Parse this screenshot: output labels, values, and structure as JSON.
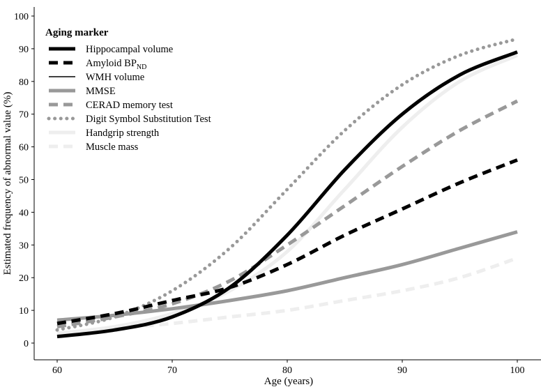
{
  "chart_data": {
    "type": "line",
    "xlabel": "Age (years)",
    "ylabel": "Estimated frequency of abnormal value (%)",
    "xlim": [
      60,
      100
    ],
    "ylim": [
      0,
      100
    ],
    "xticks": [
      60,
      70,
      80,
      90,
      100
    ],
    "yticks": [
      0,
      10,
      20,
      30,
      40,
      50,
      60,
      70,
      80,
      90,
      100
    ],
    "grid": false,
    "legend": {
      "title": "Aging marker",
      "position": "top-left"
    },
    "x": [
      60,
      65,
      70,
      75,
      80,
      85,
      90,
      95,
      100
    ],
    "series": [
      {
        "name": "Hippocampal volume",
        "color": "#000000",
        "style": "solid",
        "width": "thick",
        "values": [
          2,
          4,
          8,
          17,
          33,
          53,
          70,
          82,
          89
        ]
      },
      {
        "name": "Amyloid BP",
        "subscript": "ND",
        "color": "#000000",
        "style": "dashed",
        "width": "thick",
        "values": [
          6,
          9,
          13,
          17,
          24,
          33,
          41,
          49,
          56
        ]
      },
      {
        "name": "WMH volume",
        "color": "#000000",
        "style": "solid",
        "width": "thin",
        "values": [
          2,
          4,
          8,
          17,
          33,
          53,
          70,
          82,
          89
        ]
      },
      {
        "name": "MMSE",
        "color": "#999999",
        "style": "solid",
        "width": "thick",
        "values": [
          7,
          8.5,
          10.5,
          13,
          16,
          20,
          24,
          29,
          34
        ]
      },
      {
        "name": "CERAD memory test",
        "color": "#999999",
        "style": "dashed",
        "width": "thick",
        "values": [
          5,
          8,
          12,
          19,
          30,
          42,
          54,
          65,
          74
        ]
      },
      {
        "name": "Digit Symbol Substitution Test",
        "color": "#999999",
        "style": "dotted",
        "width": "thick",
        "values": [
          4,
          8,
          16,
          29,
          47,
          65,
          79,
          88,
          93
        ]
      },
      {
        "name": "Handgrip strength",
        "color": "#eeeeee",
        "style": "solid",
        "width": "thick",
        "values": [
          3,
          5,
          9,
          16,
          28,
          47,
          66,
          80,
          88
        ]
      },
      {
        "name": "Muscle mass",
        "color": "#eeeeee",
        "style": "dashed",
        "width": "thick",
        "values": [
          3,
          4.5,
          6,
          8,
          10,
          13,
          16,
          20,
          26
        ]
      }
    ]
  }
}
